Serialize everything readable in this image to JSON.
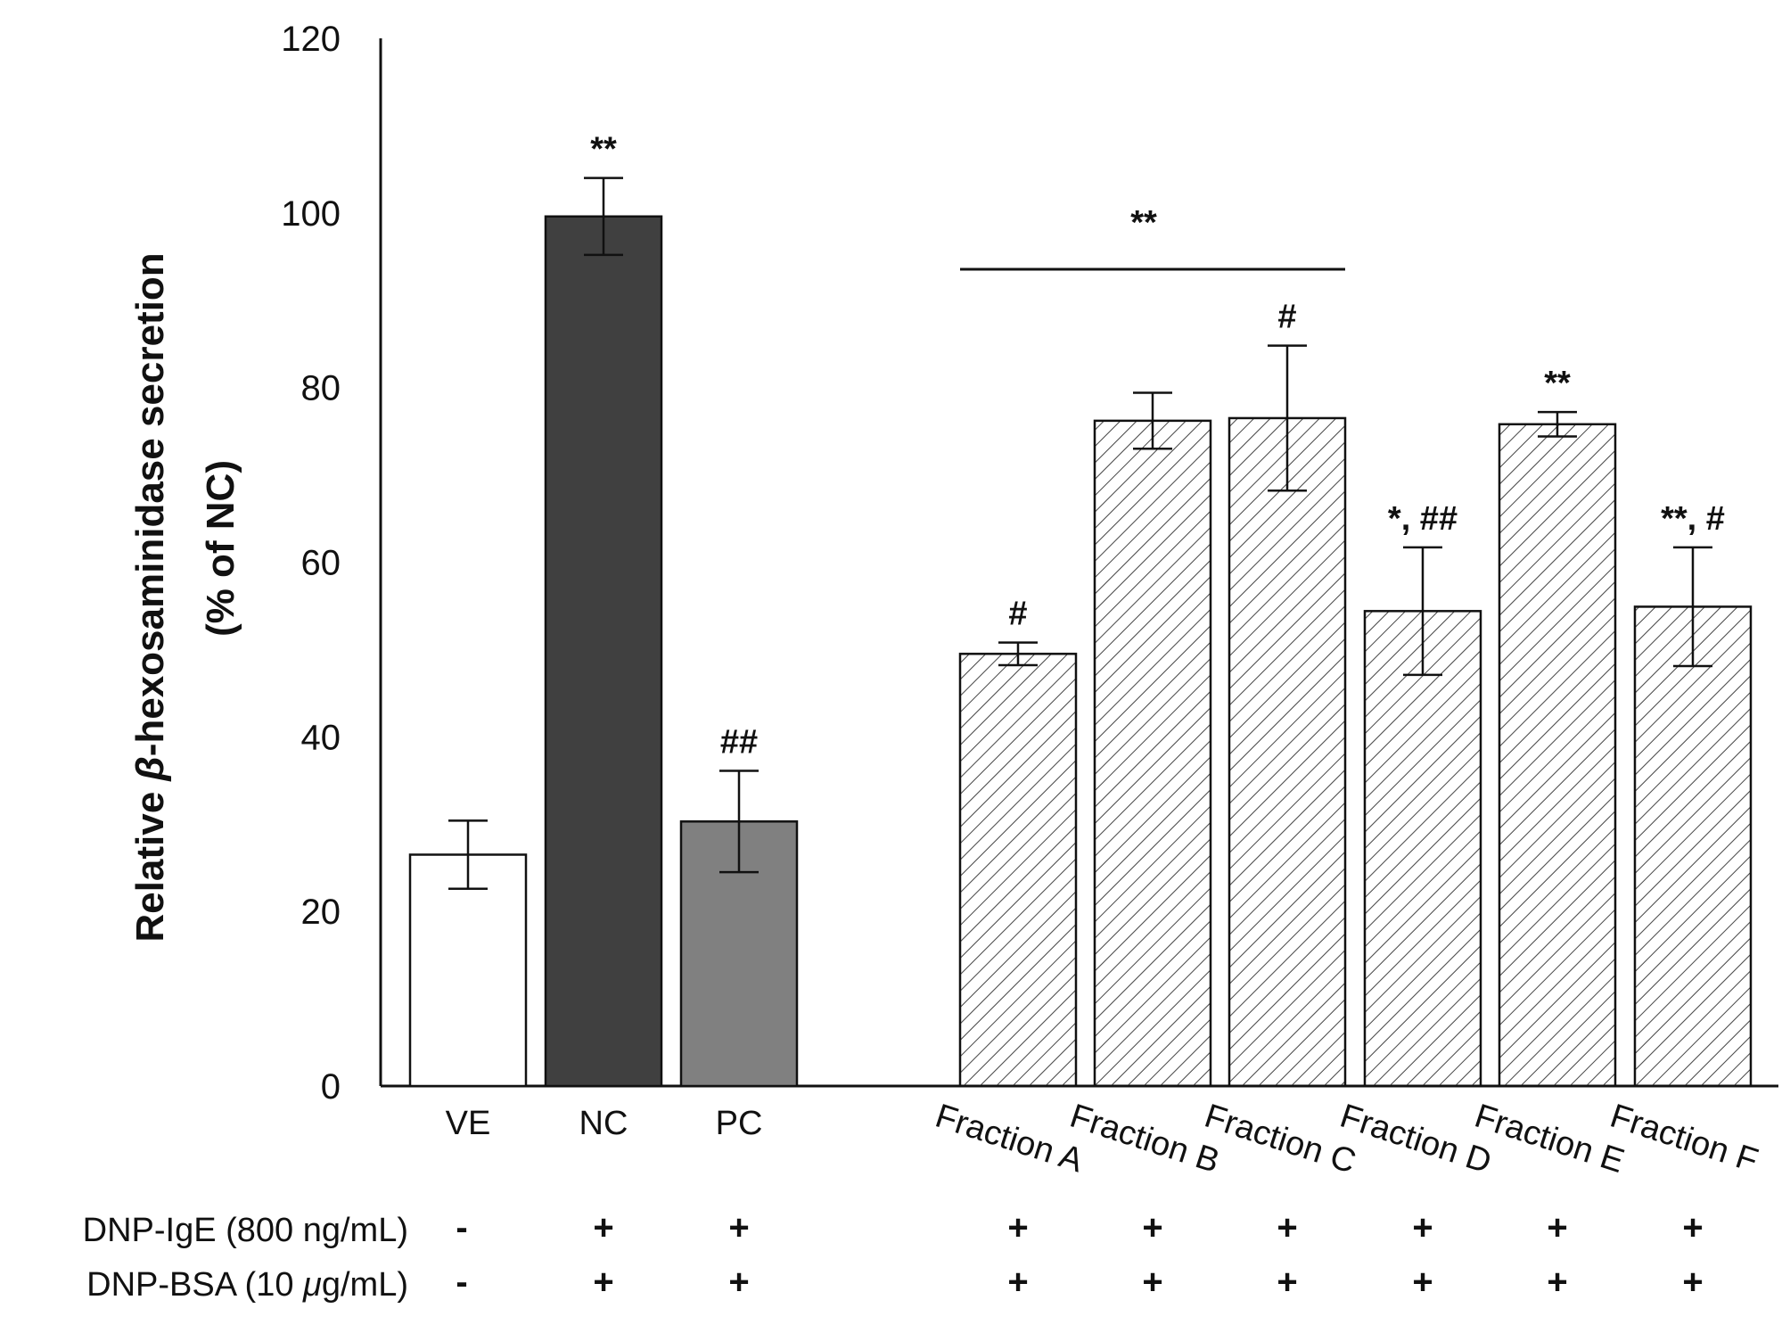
{
  "chart_data": {
    "type": "bar",
    "title": "",
    "xlabel": "",
    "ylabel_line1_prefix": "Relative ",
    "ylabel_line1_symbol": "β",
    "ylabel_line1_suffix": "-hexosaminidase secretion",
    "ylabel_line2": "(% of NC)",
    "ylim": [
      0,
      120
    ],
    "yticks": [
      0,
      20,
      40,
      60,
      80,
      100,
      120
    ],
    "categories": [
      "VE",
      "NC",
      "PC",
      "Fraction A",
      "Fraction B",
      "Fraction C",
      "Fraction D",
      "Fraction E",
      "Fraction F"
    ],
    "values": [
      26.5,
      99.6,
      30.3,
      49.5,
      76.2,
      76.5,
      54.4,
      75.8,
      54.9
    ],
    "errors": [
      3.9,
      4.4,
      5.8,
      1.3,
      3.2,
      8.3,
      7.3,
      1.4,
      6.8
    ],
    "styles": [
      "white",
      "dark",
      "gray",
      "hatch",
      "hatch",
      "hatch",
      "hatch",
      "hatch",
      "hatch"
    ],
    "fill_colors": {
      "white": "#ffffff",
      "dark": "#404040",
      "gray": "#808080",
      "hatch": "#ffffff"
    },
    "annotations": [
      "",
      "**",
      "##",
      "#",
      "",
      "#",
      "*, ##",
      "**",
      "**, #"
    ],
    "group_annotation": {
      "label": "**",
      "from_category": 3,
      "to_category": 5
    },
    "conditions": [
      {
        "label_prefix": "DNP-IgE (800 ng/mL)",
        "label_symbol": "",
        "label_suffix": "",
        "signs": [
          "-",
          "+",
          "+",
          "+",
          "+",
          "+",
          "+",
          "+",
          "+"
        ]
      },
      {
        "label_prefix": "DNP-BSA (10 ",
        "label_symbol": "μ",
        "label_suffix": "g/mL)",
        "signs": [
          "-",
          "+",
          "+",
          "+",
          "+",
          "+",
          "+",
          "+",
          "+"
        ]
      }
    ]
  }
}
